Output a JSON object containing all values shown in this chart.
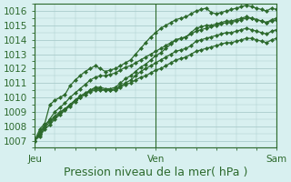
{
  "background_color": "#d8f0f0",
  "grid_color": "#aacccc",
  "line_color": "#2d6a2d",
  "marker_color": "#2d6a2d",
  "ylabel_ticks": [
    1007,
    1008,
    1009,
    1010,
    1011,
    1012,
    1013,
    1014,
    1015,
    1016
  ],
  "xlim": [
    0,
    48
  ],
  "ylim": [
    1006.5,
    1016.5
  ],
  "xlabel": "Pression niveau de la mer( hPa )",
  "xtick_positions": [
    0,
    24,
    48
  ],
  "xtick_labels": [
    "Jeu",
    "Ven",
    "Sam"
  ],
  "series": [
    [
      1007.0,
      1007.8,
      1008.2,
      1009.5,
      1009.8,
      1010.0,
      1010.2,
      1010.8,
      1011.2,
      1011.5,
      1011.8,
      1012.0,
      1012.2,
      1012.0,
      1011.8,
      1011.9,
      1012.0,
      1012.2,
      1012.4,
      1012.6,
      1013.0,
      1013.4,
      1013.8,
      1014.2,
      1014.5,
      1014.8,
      1015.0,
      1015.2,
      1015.4,
      1015.5,
      1015.6,
      1015.8,
      1016.0,
      1016.1,
      1016.2,
      1015.9,
      1015.8,
      1015.9,
      1016.0,
      1016.1,
      1016.2,
      1016.3,
      1016.4,
      1016.3,
      1016.2,
      1016.1,
      1016.0,
      1016.2,
      1016.1
    ],
    [
      1007.0,
      1007.5,
      1008.0,
      1008.5,
      1009.0,
      1009.3,
      1009.6,
      1010.0,
      1010.3,
      1010.6,
      1010.9,
      1011.2,
      1011.4,
      1011.5,
      1011.5,
      1011.6,
      1011.7,
      1011.9,
      1012.1,
      1012.2,
      1012.4,
      1012.6,
      1012.8,
      1013.0,
      1013.2,
      1013.4,
      1013.6,
      1013.8,
      1014.0,
      1014.1,
      1014.2,
      1014.4,
      1014.6,
      1014.7,
      1014.8,
      1014.9,
      1015.0,
      1015.1,
      1015.2,
      1015.2,
      1015.3,
      1015.4,
      1015.5,
      1015.5,
      1015.4,
      1015.3,
      1015.2,
      1015.3,
      1015.4
    ],
    [
      1007.0,
      1007.3,
      1007.8,
      1008.1,
      1008.5,
      1008.8,
      1009.1,
      1009.4,
      1009.7,
      1010.0,
      1010.2,
      1010.4,
      1010.5,
      1010.5,
      1010.5,
      1010.5,
      1010.5,
      1010.7,
      1010.9,
      1011.0,
      1011.2,
      1011.4,
      1011.5,
      1011.7,
      1011.9,
      1012.0,
      1012.2,
      1012.4,
      1012.6,
      1012.7,
      1012.8,
      1013.0,
      1013.2,
      1013.3,
      1013.4,
      1013.5,
      1013.6,
      1013.7,
      1013.8,
      1013.8,
      1013.9,
      1014.0,
      1014.1,
      1014.1,
      1014.0,
      1013.9,
      1013.8,
      1014.0,
      1014.1
    ],
    [
      1007.0,
      1007.6,
      1008.1,
      1008.4,
      1008.7,
      1009.0,
      1009.2,
      1009.5,
      1009.8,
      1010.0,
      1010.2,
      1010.5,
      1010.7,
      1010.7,
      1010.6,
      1010.6,
      1010.7,
      1011.0,
      1011.3,
      1011.5,
      1011.8,
      1012.1,
      1012.3,
      1012.6,
      1012.9,
      1013.1,
      1013.4,
      1013.7,
      1014.0,
      1014.1,
      1014.2,
      1014.5,
      1014.8,
      1014.9,
      1015.0,
      1015.0,
      1015.1,
      1015.2,
      1015.3,
      1015.3,
      1015.4,
      1015.5,
      1015.6,
      1015.5,
      1015.4,
      1015.3,
      1015.2,
      1015.4,
      1015.5
    ],
    [
      1007.0,
      1007.4,
      1007.9,
      1008.3,
      1008.6,
      1008.9,
      1009.2,
      1009.5,
      1009.8,
      1010.1,
      1010.3,
      1010.5,
      1010.6,
      1010.6,
      1010.5,
      1010.5,
      1010.6,
      1010.8,
      1011.0,
      1011.2,
      1011.5,
      1011.8,
      1012.0,
      1012.2,
      1012.4,
      1012.6,
      1012.8,
      1013.0,
      1013.2,
      1013.3,
      1013.4,
      1013.6,
      1013.9,
      1014.0,
      1014.1,
      1014.2,
      1014.3,
      1014.4,
      1014.5,
      1014.5,
      1014.6,
      1014.7,
      1014.8,
      1014.7,
      1014.6,
      1014.5,
      1014.4,
      1014.6,
      1014.7
    ]
  ],
  "vline_positions": [
    0,
    24,
    48
  ],
  "title_fontsize": 8,
  "xlabel_fontsize": 9,
  "tick_fontsize": 7.5
}
